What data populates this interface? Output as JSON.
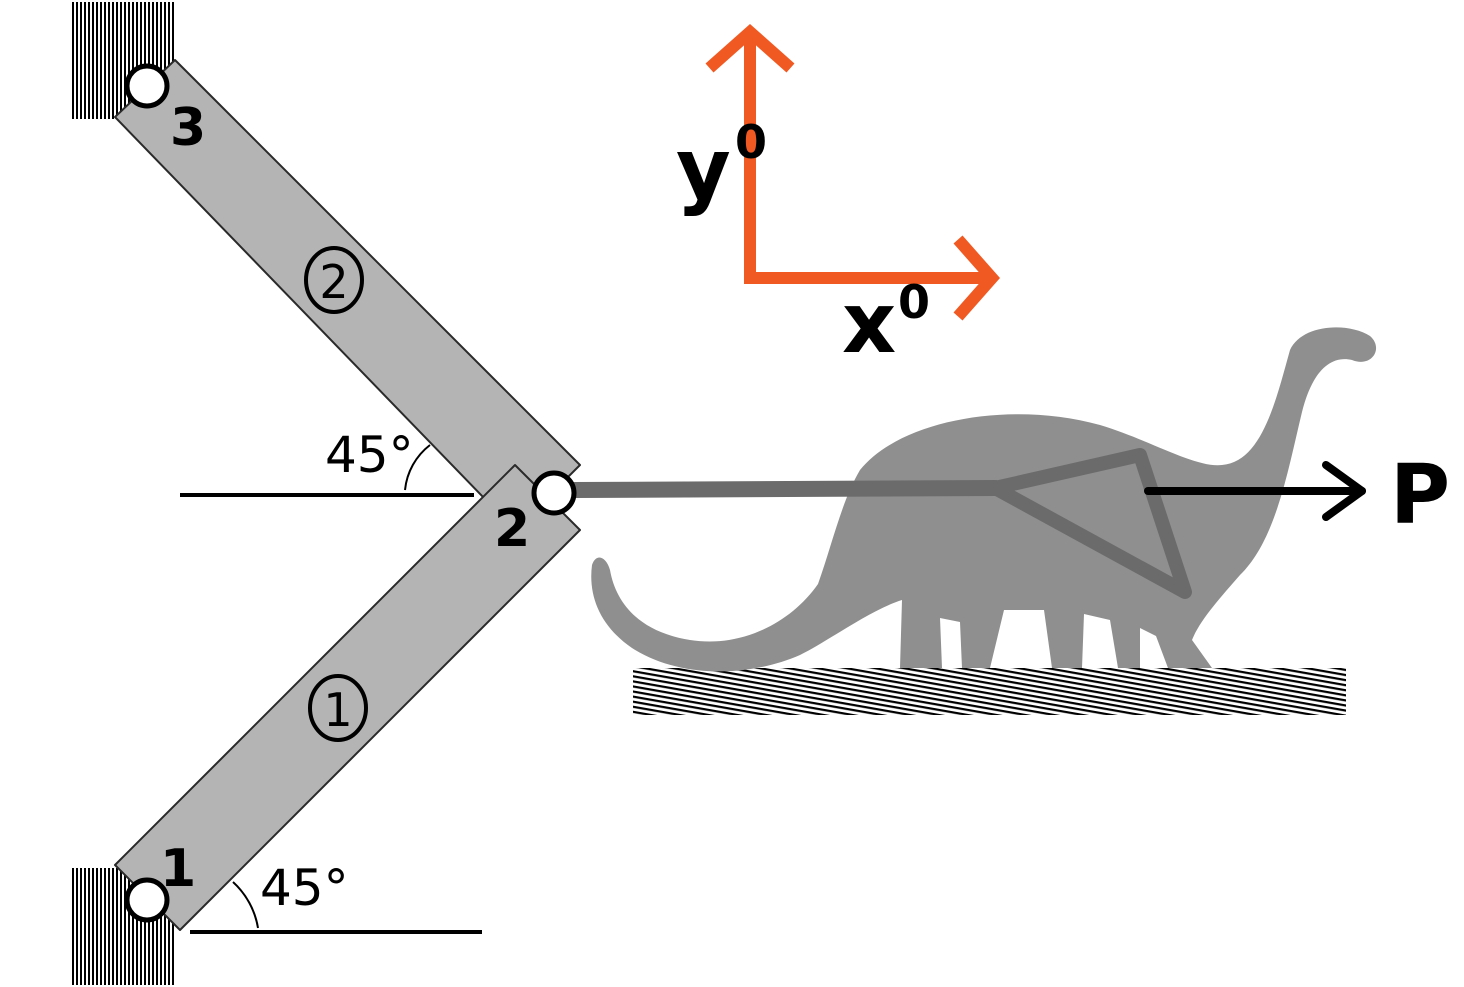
{
  "nodes": {
    "node1": "1",
    "node2": "2",
    "node3": "3"
  },
  "members": {
    "member1": "1",
    "member2": "2"
  },
  "angles": {
    "upper": "45°",
    "lower": "45°"
  },
  "axes": {
    "x_label": "x",
    "x_superscript": "0",
    "y_label": "y",
    "y_superscript": "0"
  },
  "load": {
    "label": "P"
  },
  "colors": {
    "member_fill": "#b4b4b4",
    "axis": "#f05a22",
    "dinosaur": "#8f8f8f",
    "cable": "#6b6b6b",
    "ink": "#000000"
  }
}
